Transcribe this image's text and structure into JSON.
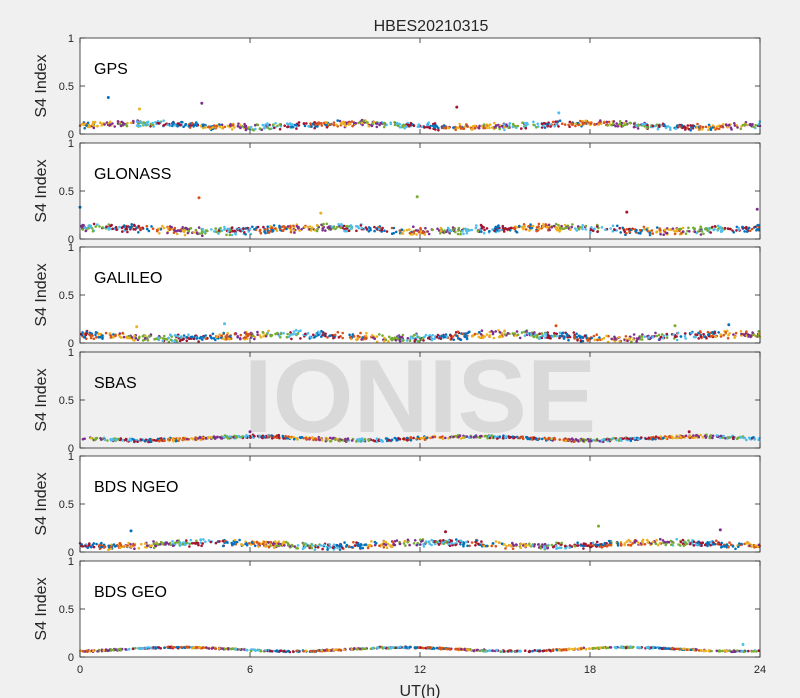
{
  "figure": {
    "title": "HBES20210315",
    "xlabel": "UT(h)",
    "watermark": "IONISE"
  },
  "chart_data": {
    "type": "scatter",
    "title": "HBES20210315",
    "xlabel": "UT(h)",
    "xlim": [
      0,
      24
    ],
    "xticks": [
      0,
      6,
      12,
      18,
      24
    ],
    "ylabel": "S4 Index",
    "ylim": [
      0,
      1
    ],
    "yticks": [
      0,
      0.5,
      1
    ],
    "grid": false,
    "series_colors": [
      "#0072BD",
      "#D95319",
      "#EDB120",
      "#7E2F8E",
      "#77AC30",
      "#4DBEEE",
      "#A2142F"
    ],
    "panels": [
      {
        "label": "GPS",
        "baseline": 0.09,
        "spread": 0.04,
        "outliers": [
          [
            1.0,
            0.38
          ],
          [
            4.3,
            0.32
          ],
          [
            13.3,
            0.28
          ],
          [
            2.1,
            0.26
          ],
          [
            16.9,
            0.22
          ]
        ]
      },
      {
        "label": "GLONASS",
        "baseline": 0.1,
        "spread": 0.05,
        "outliers": [
          [
            4.2,
            0.43
          ],
          [
            11.9,
            0.44
          ],
          [
            0.0,
            0.33
          ],
          [
            23.9,
            0.31
          ],
          [
            19.3,
            0.28
          ],
          [
            8.5,
            0.27
          ]
        ]
      },
      {
        "label": "GALILEO",
        "baseline": 0.07,
        "spread": 0.05,
        "outliers": [
          [
            2.0,
            0.17
          ],
          [
            5.1,
            0.2
          ],
          [
            16.8,
            0.18
          ],
          [
            21.0,
            0.18
          ],
          [
            22.9,
            0.19
          ]
        ]
      },
      {
        "label": "SBAS",
        "baseline": 0.1,
        "spread": 0.02,
        "outliers": [
          [
            6.0,
            0.17
          ],
          [
            21.5,
            0.17
          ]
        ]
      },
      {
        "label": "BDS NGEO",
        "baseline": 0.08,
        "spread": 0.04,
        "outliers": [
          [
            18.3,
            0.27
          ],
          [
            1.8,
            0.22
          ],
          [
            22.6,
            0.23
          ],
          [
            12.9,
            0.21
          ]
        ]
      },
      {
        "label": "BDS GEO",
        "baseline": 0.08,
        "spread": 0.01,
        "outliers": [
          [
            23.4,
            0.13
          ]
        ]
      }
    ]
  }
}
